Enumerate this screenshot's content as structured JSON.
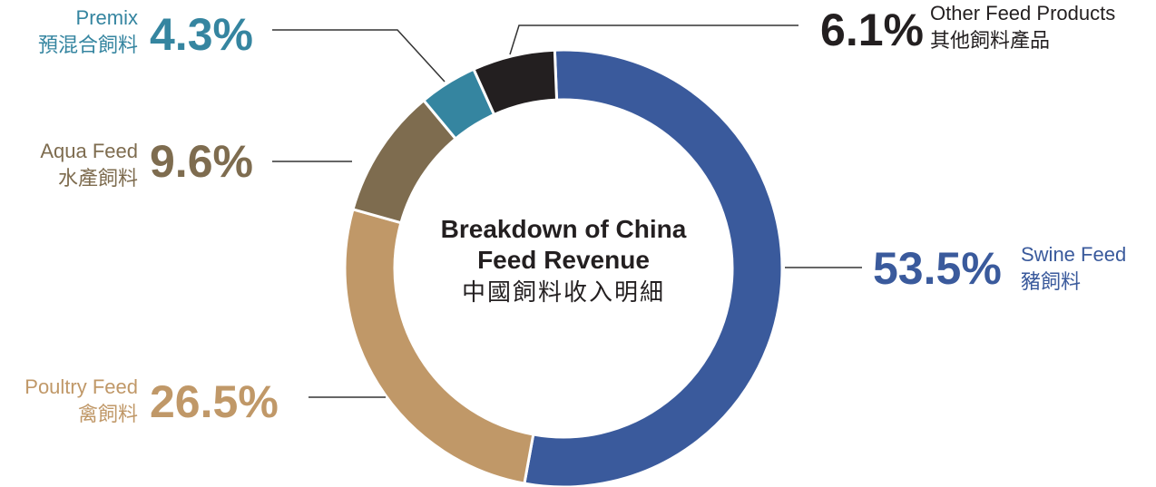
{
  "chart_data": {
    "type": "donut",
    "title": "Breakdown of China Feed Revenue",
    "subtitle": "中國飼料收入明細",
    "categories": [
      "Swine Feed",
      "Poultry Feed",
      "Aqua Feed",
      "Premix",
      "Other Feed Products"
    ],
    "categories_zh": [
      "豬飼料",
      "禽飼料",
      "水產飼料",
      "預混合飼料",
      "其他飼料產品"
    ],
    "values": [
      53.5,
      26.5,
      9.6,
      4.3,
      6.1
    ],
    "value_labels": [
      "53.5%",
      "26.5%",
      "9.6%",
      "4.3%",
      "6.1%"
    ],
    "colors": [
      "#3a5a9c",
      "#c09868",
      "#7e6c4f",
      "#3585a0",
      "#231f20"
    ]
  }
}
